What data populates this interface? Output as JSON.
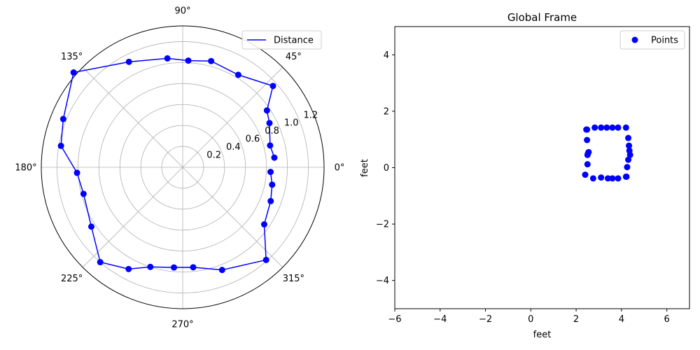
{
  "chart_data": [
    {
      "type": "line",
      "projection": "polar",
      "theta_unit": "degrees",
      "angle_ticks": [
        0,
        45,
        90,
        135,
        180,
        225,
        270,
        315
      ],
      "angle_tick_labels": [
        "0°",
        "45°",
        "90°",
        "135°",
        "180°",
        "225°",
        "270°",
        "315°"
      ],
      "radial_ticks": [
        0.2,
        0.4,
        0.6,
        0.8,
        1.0,
        1.2
      ],
      "radial_tick_labels": [
        "0.2",
        "0.4",
        "0.6",
        "0.8",
        "1.0",
        "1.2"
      ],
      "rlim": [
        0,
        1.35
      ],
      "grid": true,
      "legend": {
        "position": "top-right",
        "entries": [
          "Distance"
        ]
      },
      "series": [
        {
          "name": "Distance",
          "color": "#0000ff",
          "marker": "circle",
          "theta": [
            6,
            14,
            27,
            34,
            42,
            59,
            75,
            87,
            98,
            117,
            139,
            158,
            170,
            183,
            195,
            213,
            229,
            242,
            252,
            265,
            276,
            291,
            312,
            325,
            339,
            349,
            357
          ],
          "r": [
            0.88,
            0.86,
            0.93,
            0.97,
            1.16,
            1.03,
            1.05,
            1.02,
            1.05,
            1.13,
            1.38,
            1.23,
            1.18,
            1.01,
            0.98,
            1.04,
            1.2,
            1.1,
            1.0,
            0.96,
            0.96,
            1.05,
            1.19,
            0.95,
            0.9,
            0.87,
            0.84
          ]
        }
      ]
    },
    {
      "type": "scatter",
      "title": "Global Frame",
      "xlabel": "feet",
      "ylabel": "feet",
      "xlim": [
        -6,
        7
      ],
      "ylim": [
        -5,
        5
      ],
      "xticks": [
        -6,
        -4,
        -2,
        0,
        2,
        4,
        6
      ],
      "yticks": [
        -4,
        -2,
        0,
        2,
        4
      ],
      "grid": false,
      "legend": {
        "position": "top-right",
        "entries": [
          "Points"
        ]
      },
      "series": [
        {
          "name": "Points",
          "color": "#0000ff",
          "x": [
            2.45,
            2.48,
            2.5,
            2.53,
            2.55,
            2.5,
            2.48,
            2.82,
            3.1,
            3.35,
            3.6,
            3.85,
            4.2,
            4.3,
            4.33,
            4.35,
            4.38,
            4.3,
            4.25,
            4.22,
            2.4,
            2.75,
            3.1,
            3.4,
            3.6,
            3.85,
            4.2
          ],
          "y": [
            1.35,
            0.98,
            0.45,
            0.52,
            0.55,
            0.12,
            1.35,
            1.42,
            1.42,
            1.42,
            1.42,
            1.42,
            1.42,
            1.05,
            0.78,
            0.6,
            0.45,
            0.28,
            0.02,
            -0.32,
            -0.25,
            -0.38,
            -0.35,
            -0.38,
            -0.38,
            -0.38,
            -0.32
          ]
        }
      ]
    }
  ]
}
